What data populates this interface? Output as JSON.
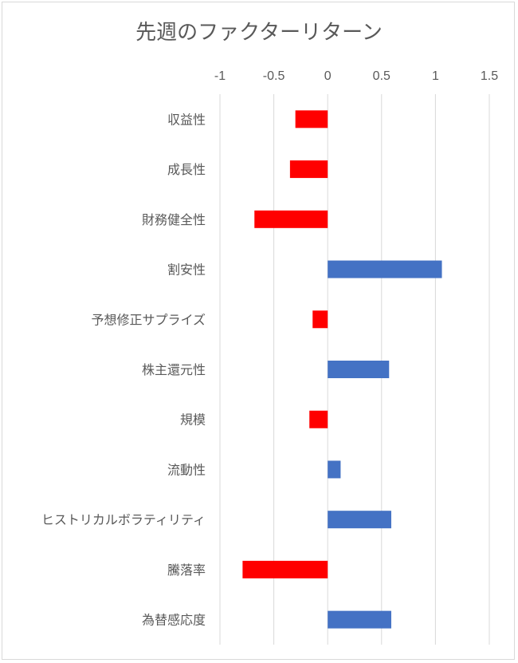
{
  "chart_data": {
    "type": "bar",
    "orientation": "horizontal",
    "title": "先週のファクターリターン",
    "categories": [
      "収益性",
      "成長性",
      "財務健全性",
      "割安性",
      "予想修正サプライズ",
      "株主還元性",
      "規模",
      "流動性",
      "ヒストリカルボラティリティ",
      "騰落率",
      "為替感応度"
    ],
    "values": [
      -0.3,
      -0.35,
      -0.68,
      1.06,
      -0.14,
      0.57,
      -0.17,
      0.12,
      0.59,
      -0.79,
      0.59
    ],
    "xlim": [
      -1,
      1.5
    ],
    "xticks": [
      "-1",
      "-0.5",
      "0",
      "0.5",
      "1",
      "1.5"
    ],
    "xtick_values": [
      -1,
      -0.5,
      0,
      0.5,
      1,
      1.5
    ],
    "xaxis_position": "top",
    "grid": true,
    "colors": {
      "positive": "#4472c4",
      "negative": "#ff0000",
      "grid": "#d9d9d9"
    }
  }
}
